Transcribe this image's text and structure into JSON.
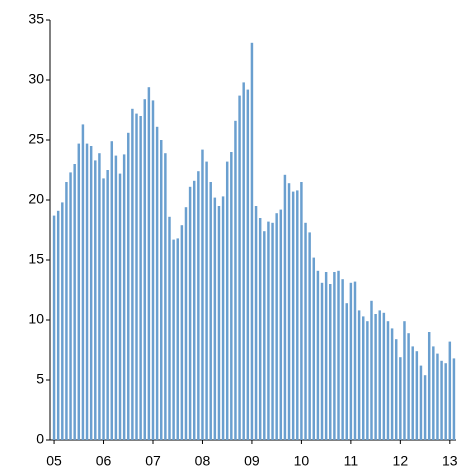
{
  "chart_data": {
    "type": "bar",
    "categories": [
      "05",
      null,
      null,
      null,
      null,
      null,
      null,
      null,
      null,
      null,
      null,
      null,
      "06",
      null,
      null,
      null,
      null,
      null,
      null,
      null,
      null,
      null,
      null,
      null,
      "07",
      null,
      null,
      null,
      null,
      null,
      null,
      null,
      null,
      null,
      null,
      null,
      "08",
      null,
      null,
      null,
      null,
      null,
      null,
      null,
      null,
      null,
      null,
      null,
      "09",
      null,
      null,
      null,
      null,
      null,
      null,
      null,
      null,
      null,
      null,
      null,
      "10",
      null,
      null,
      null,
      null,
      null,
      null,
      null,
      null,
      null,
      null,
      null,
      "11",
      null,
      null,
      null,
      null,
      null,
      null,
      null,
      null,
      null,
      null,
      null,
      "12",
      null,
      null,
      null,
      null,
      null,
      null,
      null,
      null,
      null,
      null,
      null,
      "13",
      null
    ],
    "values": [
      18.7,
      19.1,
      19.8,
      21.5,
      22.3,
      23.0,
      24.7,
      26.3,
      24.7,
      24.5,
      23.3,
      23.9,
      21.8,
      22.5,
      24.9,
      23.7,
      22.2,
      23.8,
      25.6,
      27.6,
      27.2,
      27.0,
      28.4,
      29.4,
      28.3,
      26.1,
      25.0,
      23.9,
      18.6,
      16.7,
      16.8,
      17.9,
      19.4,
      21.1,
      21.6,
      22.4,
      24.2,
      23.2,
      21.5,
      20.2,
      19.5,
      20.3,
      23.2,
      24.0,
      26.6,
      28.7,
      29.8,
      29.2,
      33.1,
      19.5,
      18.5,
      17.4,
      18.2,
      18.1,
      18.9,
      19.2,
      22.1,
      21.4,
      20.7,
      20.8,
      21.5,
      18.1,
      17.3,
      15.2,
      14.1,
      13.1,
      14.0,
      13.0,
      14.0,
      14.1,
      13.4,
      11.4,
      13.1,
      13.2,
      10.8,
      10.3,
      9.9,
      11.6,
      10.5,
      10.8,
      10.6,
      9.9,
      9.3,
      8.4,
      6.9,
      9.9,
      8.9,
      7.8,
      7.4,
      6.2,
      5.4,
      9.0,
      7.8,
      7.2,
      6.6,
      6.4,
      8.2,
      6.8
    ],
    "color": "#6a9fcf",
    "ylim": [
      0,
      35
    ],
    "yticks": [
      0,
      5,
      10,
      15,
      20,
      25,
      30,
      35
    ],
    "grid": false
  }
}
